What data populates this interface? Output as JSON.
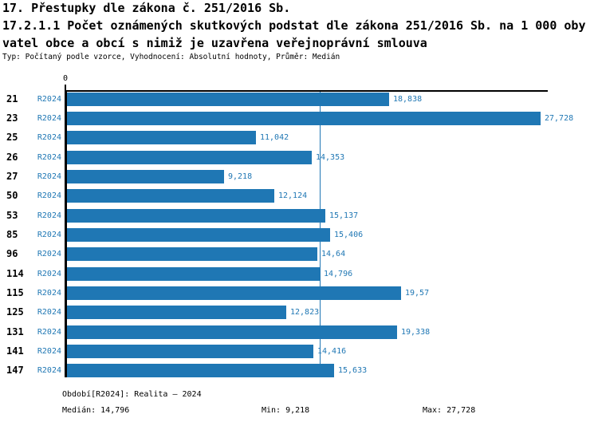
{
  "title": {
    "line1": "17. Přestupky dle zákona č. 251/2016 Sb.",
    "line2": "17.2.1.1 Počet oznámených skutkových podstat dle zákona 251/2016 Sb. na 1 000 oby",
    "line3": "vatel obce a obcí s nimiž je uzavřena veřejnoprávní smlouva",
    "meta": "Typ: Počítaný podle vzorce, Vyhodnocení: Absolutní hodnoty, Průměr: Medián"
  },
  "chart_data": {
    "type": "bar",
    "orientation": "horizontal",
    "series_name": "R2024",
    "axis": {
      "zero_label": "0",
      "xlim": [
        0,
        28.3
      ],
      "grid": false
    },
    "median_reference_value": 14.796,
    "categories": [
      "21",
      "23",
      "25",
      "26",
      "27",
      "50",
      "53",
      "85",
      "96",
      "114",
      "115",
      "125",
      "131",
      "141",
      "147"
    ],
    "rows": [
      {
        "category": "21",
        "series": "R2024",
        "value": 18.838,
        "label": "18,838"
      },
      {
        "category": "23",
        "series": "R2024",
        "value": 27.728,
        "label": "27,728"
      },
      {
        "category": "25",
        "series": "R2024",
        "value": 11.042,
        "label": "11,042"
      },
      {
        "category": "26",
        "series": "R2024",
        "value": 14.353,
        "label": "14,353"
      },
      {
        "category": "27",
        "series": "R2024",
        "value": 9.218,
        "label": "9,218"
      },
      {
        "category": "50",
        "series": "R2024",
        "value": 12.124,
        "label": "12,124"
      },
      {
        "category": "53",
        "series": "R2024",
        "value": 15.137,
        "label": "15,137"
      },
      {
        "category": "85",
        "series": "R2024",
        "value": 15.406,
        "label": "15,406"
      },
      {
        "category": "96",
        "series": "R2024",
        "value": 14.64,
        "label": "14,64"
      },
      {
        "category": "114",
        "series": "R2024",
        "value": 14.796,
        "label": "14,796"
      },
      {
        "category": "115",
        "series": "R2024",
        "value": 19.57,
        "label": "19,57"
      },
      {
        "category": "125",
        "series": "R2024",
        "value": 12.823,
        "label": "12,823"
      },
      {
        "category": "131",
        "series": "R2024",
        "value": 19.338,
        "label": "19,338"
      },
      {
        "category": "141",
        "series": "R2024",
        "value": 14.416,
        "label": "14,416"
      },
      {
        "category": "147",
        "series": "R2024",
        "value": 15.633,
        "label": "15,633"
      }
    ],
    "colors": {
      "bar": "#1f77b4",
      "value_text": "#1f77b4",
      "median_line": "#1f77b4"
    }
  },
  "footer": {
    "period": "Období[R2024]: Realita – 2024",
    "median": "Medián: 14,796",
    "min": "Min: 9,218",
    "max": "Max: 27,728"
  }
}
